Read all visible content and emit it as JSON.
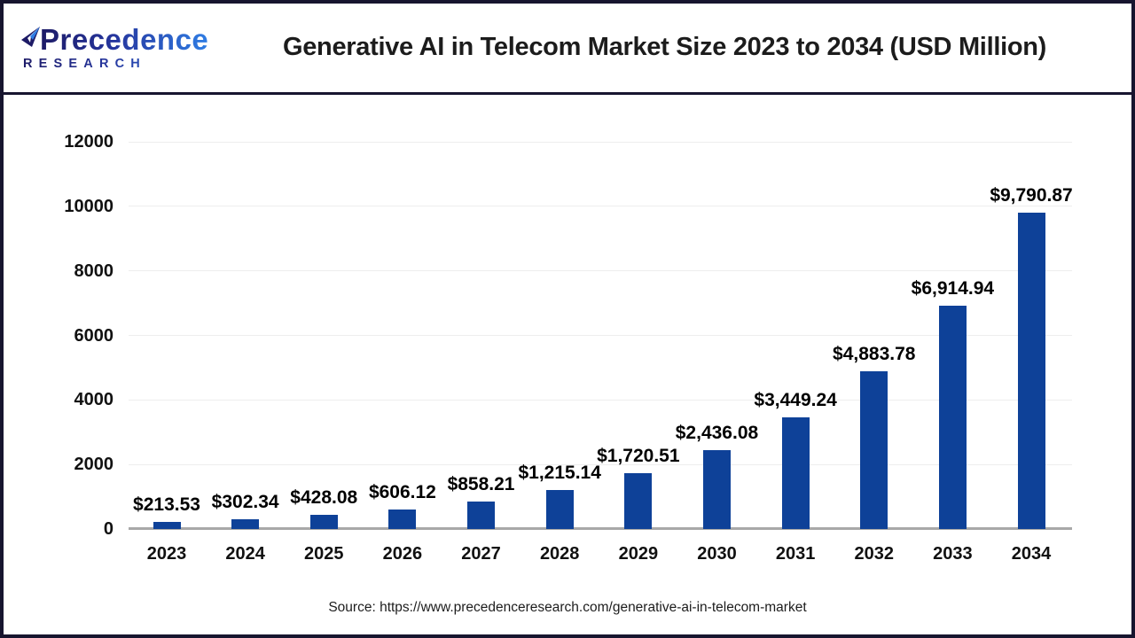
{
  "header": {
    "logo": {
      "primary": "Precedence",
      "secondary": "RESEARCH",
      "gradient_start": "#1d1a66",
      "gradient_end": "#2f7de4"
    },
    "title": "Generative AI in Telecom Market Size 2023 to 2034 (USD Million)"
  },
  "chart_data": {
    "type": "bar",
    "title": "Generative AI in Telecom Market Size 2023 to 2034 (USD Million)",
    "categories": [
      "2023",
      "2024",
      "2025",
      "2026",
      "2027",
      "2028",
      "2029",
      "2030",
      "2031",
      "2032",
      "2033",
      "2034"
    ],
    "values": [
      213.53,
      302.34,
      428.08,
      606.12,
      858.21,
      1215.14,
      1720.51,
      2436.08,
      3449.24,
      4883.78,
      6914.94,
      9790.87
    ],
    "labels": [
      "$213.53",
      "$302.34",
      "$428.08",
      "$606.12",
      "$858.21",
      "$1,215.14",
      "$1,720.51",
      "$2,436.08",
      "$3,449.24",
      "$4,883.78",
      "$6,914.94",
      "$9,790.87"
    ],
    "xlabel": "",
    "ylabel": "",
    "ylim": [
      0,
      12000
    ],
    "yticks": [
      0,
      2000,
      4000,
      6000,
      8000,
      10000,
      12000
    ],
    "grid": true,
    "legend": false,
    "bar_color": "#0e4198",
    "gridline_color": "#eeeeee",
    "baseline_color": "#a8a8a8"
  },
  "footer": {
    "source": "Source: https://www.precedenceresearch.com/generative-ai-in-telecom-market"
  },
  "frame": {
    "border_color": "#17152f"
  }
}
